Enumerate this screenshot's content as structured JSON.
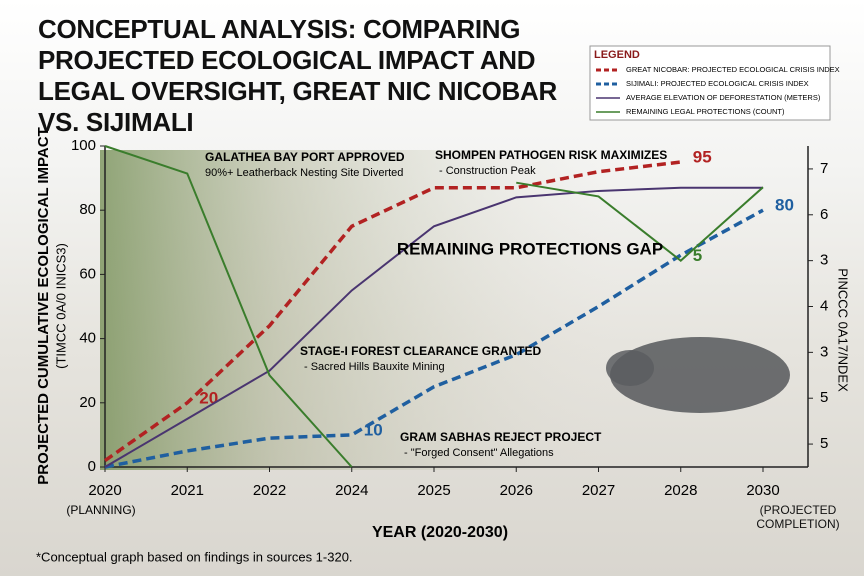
{
  "chart_data": {
    "type": "line",
    "title": "CONCEPTUAL ANALYSIS: COMPARING PROJECTED ECOLOGICAL IMPACT AND LEGAL OVERSIGHT, GREAT NIC NICOBAR VS. SIJIMALI",
    "legend_title": "LEGEND",
    "legend": "upper right",
    "x_label": "YEAR (2020-2030)",
    "y_label": "PROJECTED CUMULATIVE ECOLOGICAL IMPACT",
    "y_sublabel": "(TIMCC 0A/0 INICS3)",
    "y2_label": "PINCCC 0A17/NDEX",
    "start_note": "(PLANNING)",
    "end_note": "(PROJECTED COMPLETION)",
    "footnote": "*Conceptual graph based on findings in sources 1-320.",
    "categories": [
      "2020",
      "2021",
      "2022",
      "2024",
      "2025",
      "2026",
      "2027",
      "2028",
      "2030"
    ],
    "ylim": [
      0,
      100
    ],
    "yticks": [
      0,
      20,
      40,
      60,
      80,
      100
    ],
    "y2lim": [
      0.5,
      7.5
    ],
    "y2ticks": [
      7,
      6,
      {
        "value": 5,
        "label": "3"
      },
      4,
      3,
      {
        "value": 2,
        "label": "5"
      },
      {
        "value": 1,
        "label": "5"
      }
    ],
    "series": [
      {
        "name": "GREAT NICOBAR: PROJECTED ECOLOGICAL CRISIS INDEX",
        "color": "#b22222",
        "dashed": true,
        "values": [
          2,
          20,
          44,
          75,
          87,
          87,
          92,
          95,
          null
        ],
        "value_labels": [
          null,
          "20",
          null,
          null,
          null,
          null,
          null,
          "95",
          null
        ]
      },
      {
        "name": "SIJIMALI: PROJECTED ECOLOGICAL CRISIS INDEX",
        "color": "#1f5fa0",
        "dashed": true,
        "values": [
          0,
          5,
          9,
          10,
          25,
          35,
          50,
          66,
          80
        ],
        "value_labels": [
          null,
          null,
          null,
          "10",
          null,
          null,
          null,
          null,
          "80"
        ]
      },
      {
        "name": "AVERAGE ELEVATION OF DEFORESTATION (METERS)",
        "color": "#4a3570",
        "dashed": false,
        "values": [
          0,
          15,
          30,
          55,
          75,
          84,
          86,
          87,
          87
        ]
      },
      {
        "name": "REMAINING LEGAL PROTECTIONS (COUNT)",
        "color": "#3a7d2c",
        "dashed": false,
        "axis": "y2",
        "values": [
          7.5,
          6.9,
          2.5,
          0.5,
          null,
          6.7,
          6.4,
          5,
          6.6
        ],
        "value_labels": [
          null,
          null,
          null,
          null,
          null,
          null,
          null,
          "5",
          null
        ]
      }
    ],
    "annotations": [
      {
        "title": "GALATHEA BAY PORT APPROVED",
        "text": "90%+ Leatherback Nesting Site Diverted"
      },
      {
        "title": "SHOMPEN PATHOGEN RISK MAXIMIZES",
        "text": "- Construction Peak"
      },
      {
        "title": "REMAINING PROTECTIONS GAP"
      },
      {
        "title": "STAGE-I FOREST CLEARANCE GRANTED",
        "text": "- Sacred Hills Bauxite Mining"
      },
      {
        "title": "GRAM SABHAS REJECT PROJECT",
        "text": "- \"Forged Consent\" Allegations"
      }
    ]
  }
}
